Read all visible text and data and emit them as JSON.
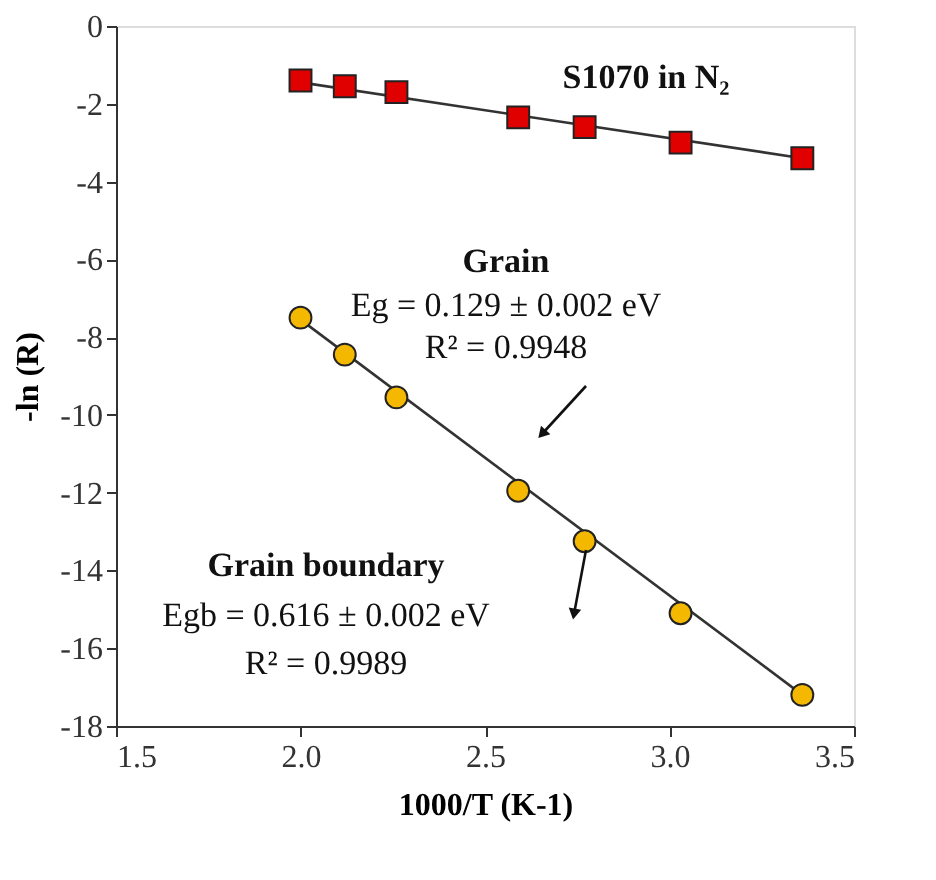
{
  "chart_data": {
    "type": "scatter",
    "xlabel": "1000/T (K-1)",
    "ylabel": "-ln (R)",
    "xlim": [
      1.5,
      3.5
    ],
    "xticks": [
      {
        "value": 1.5,
        "label": "1.5"
      },
      {
        "value": 2.0,
        "label": "2.0"
      },
      {
        "value": 2.5,
        "label": "2.5"
      },
      {
        "value": 3.0,
        "label": "3.0"
      },
      {
        "value": 3.5,
        "label": "3.5"
      }
    ],
    "ylim": [
      -18,
      0
    ],
    "yticks": [
      -18,
      -16,
      -14,
      -12,
      -10,
      -8,
      -6,
      -4,
      -2,
      0
    ],
    "grid": false,
    "legend": false,
    "series": [
      {
        "type": "scatter",
        "marker": "square",
        "color": "#e00000",
        "x": [
          2.0,
          2.12,
          2.26,
          2.59,
          2.77,
          3.03,
          3.36
        ],
        "values": [
          -1.4,
          -1.55,
          -1.7,
          -2.35,
          -2.6,
          -3.0,
          -3.4
        ]
      },
      {
        "type": "scatter",
        "marker": "circle",
        "color": "#f5b800",
        "x": [
          2.0,
          2.12,
          2.26,
          2.59,
          2.77,
          3.03,
          3.36
        ],
        "values": [
          -7.5,
          -8.45,
          -9.55,
          -11.95,
          -13.25,
          -15.1,
          -17.2
        ]
      },
      {
        "type": "line",
        "color": "#333333",
        "x": [
          2.0,
          3.36
        ],
        "values": [
          -1.45,
          -3.4
        ]
      },
      {
        "type": "line",
        "color": "#333333",
        "x": [
          2.0,
          3.36
        ],
        "values": [
          -7.55,
          -17.2
        ]
      }
    ],
    "annotations": [
      "S1070 in N₂",
      "Grain",
      "Eg = 0.129 ± 0.002 eV",
      "R² = 0.9948",
      "Grain boundary",
      "Egb = 0.616 ± 0.002 eV",
      "R² = 0.9989"
    ]
  }
}
